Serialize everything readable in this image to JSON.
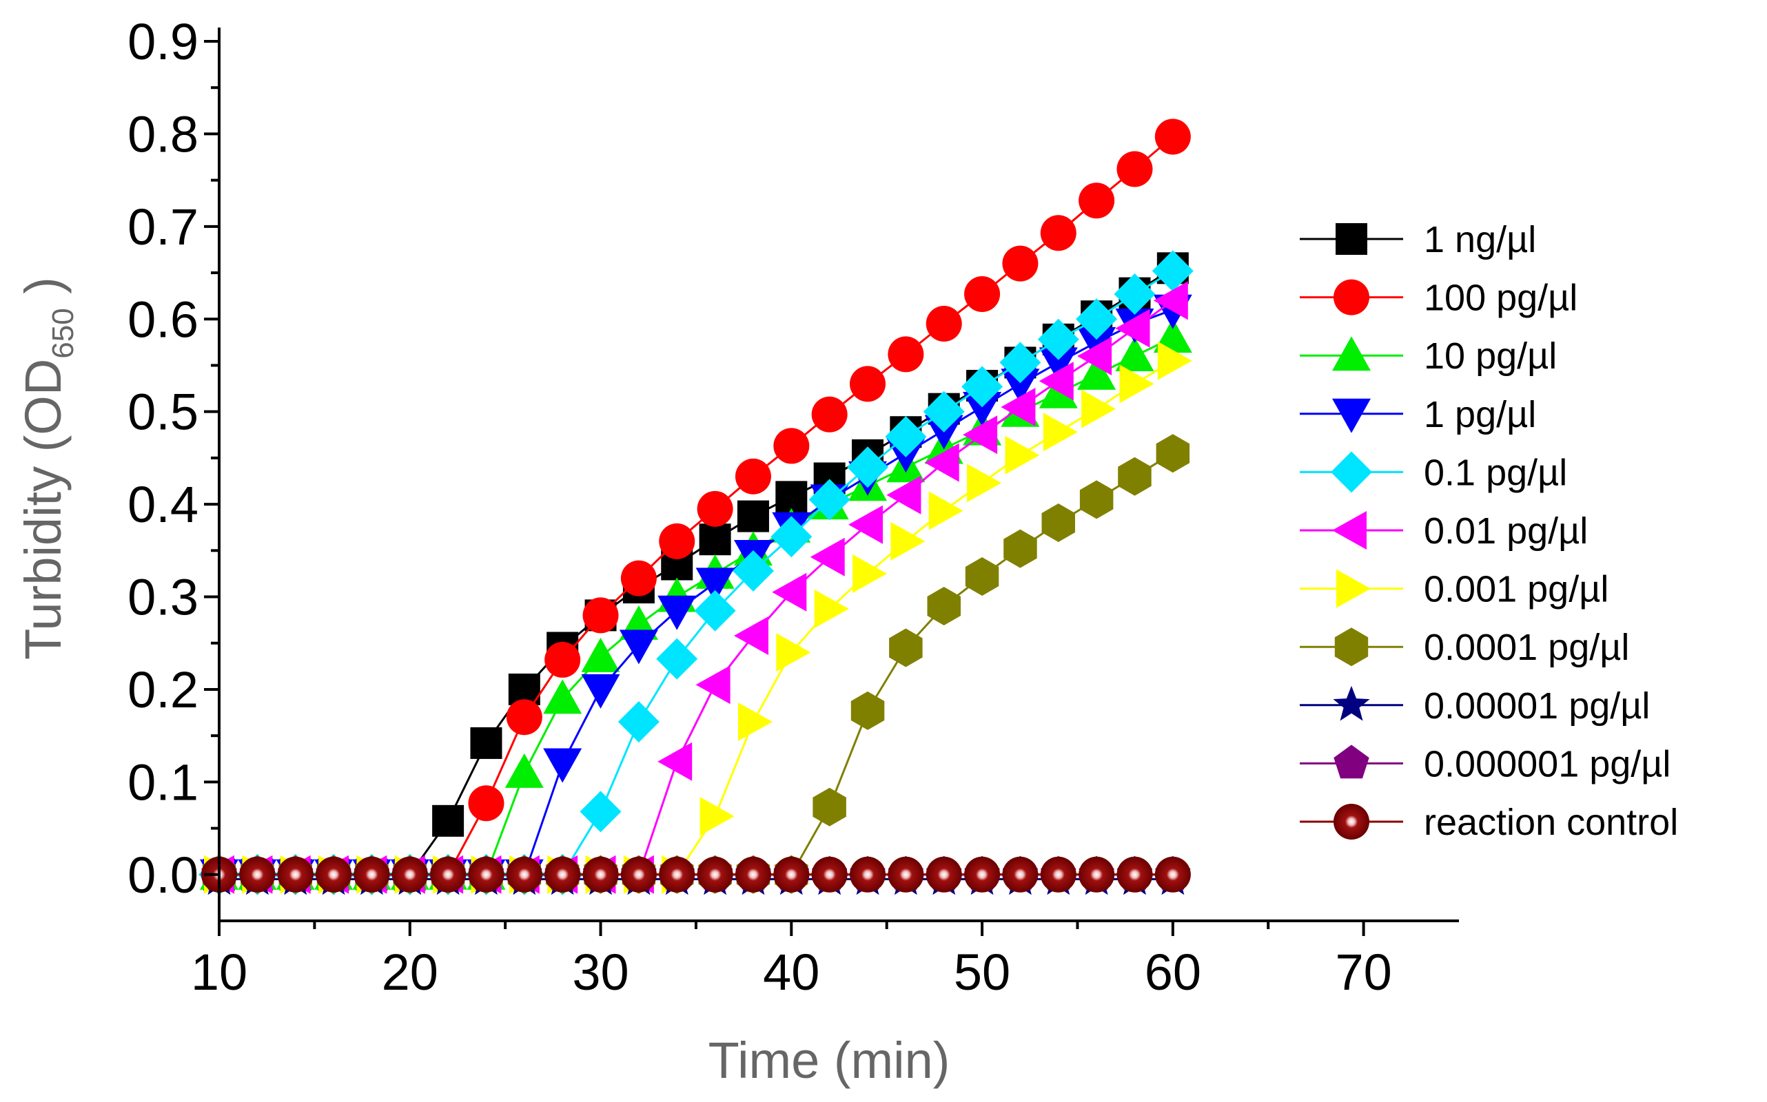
{
  "chart_data": {
    "type": "scatter",
    "title": "",
    "xlabel": "Time (min)",
    "ylabel_main": "Turbidity (OD",
    "ylabel_sub": "650",
    "ylabel_close": " )",
    "xlim": [
      10,
      75
    ],
    "ylim": [
      -0.05,
      0.9
    ],
    "xticks": [
      10,
      20,
      30,
      40,
      50,
      60,
      70
    ],
    "xtick_labels": [
      "10",
      "20",
      "30",
      "40",
      "50",
      "60",
      "70"
    ],
    "yticks": [
      0.0,
      0.1,
      0.2,
      0.3,
      0.4,
      0.5,
      0.6,
      0.7,
      0.8,
      0.9
    ],
    "ytick_labels": [
      "0.0",
      "0.1",
      "0.2",
      "0.3",
      "0.4",
      "0.5",
      "0.6",
      "0.7",
      "0.8",
      "0.9"
    ],
    "legend_position": "right",
    "x": [
      10,
      12,
      14,
      16,
      18,
      20,
      22,
      24,
      26,
      28,
      30,
      32,
      34,
      36,
      38,
      40,
      42,
      44,
      46,
      48,
      50,
      52,
      54,
      56,
      58,
      60
    ],
    "series": [
      {
        "name": "1 ng/µl",
        "color": "#000000",
        "marker": "square",
        "values": [
          0,
          0,
          0,
          0,
          0,
          0,
          0.058,
          0.142,
          0.2,
          0.245,
          0.28,
          0.31,
          0.335,
          0.362,
          0.387,
          0.408,
          0.428,
          0.453,
          0.478,
          0.503,
          0.528,
          0.553,
          0.578,
          0.603,
          0.628,
          0.655
        ]
      },
      {
        "name": "100 pg/µl",
        "color": "#ff0000",
        "marker": "circle",
        "values": [
          0,
          0,
          0,
          0,
          0,
          0,
          0,
          0.077,
          0.17,
          0.232,
          0.28,
          0.32,
          0.36,
          0.395,
          0.43,
          0.463,
          0.497,
          0.53,
          0.562,
          0.595,
          0.627,
          0.66,
          0.693,
          0.728,
          0.762,
          0.797
        ]
      },
      {
        "name": "10 pg/µl",
        "color": "#00ee00",
        "marker": "triangle-up",
        "values": [
          0,
          0,
          0,
          0,
          0,
          0,
          0,
          0,
          0.11,
          0.19,
          0.235,
          0.27,
          0.3,
          0.325,
          0.35,
          0.375,
          0.4,
          0.42,
          0.44,
          0.46,
          0.48,
          0.5,
          0.52,
          0.54,
          0.56,
          0.58
        ]
      },
      {
        "name": "1 pg/µl",
        "color": "#0000ff",
        "marker": "triangle-down",
        "values": [
          0,
          0,
          0,
          0,
          0,
          0,
          0,
          0,
          0,
          0.12,
          0.2,
          0.248,
          0.285,
          0.315,
          0.345,
          0.375,
          0.405,
          0.43,
          0.455,
          0.48,
          0.505,
          0.53,
          0.553,
          0.575,
          0.595,
          0.61
        ]
      },
      {
        "name": "0.1 pg/µl",
        "color": "#00e5ff",
        "marker": "diamond",
        "values": [
          0,
          0,
          0,
          0,
          0,
          0,
          0,
          0,
          0,
          0,
          0.068,
          0.165,
          0.233,
          0.285,
          0.328,
          0.365,
          0.405,
          0.44,
          0.473,
          0.5,
          0.527,
          0.553,
          0.578,
          0.6,
          0.627,
          0.652
        ]
      },
      {
        "name": "0.01 pg/µl",
        "color": "#ff00ff",
        "marker": "triangle-left",
        "values": [
          0,
          0,
          0,
          0,
          0,
          0,
          0,
          0,
          0,
          0,
          0,
          0,
          0.122,
          0.205,
          0.258,
          0.305,
          0.343,
          0.378,
          0.41,
          0.445,
          0.475,
          0.505,
          0.533,
          0.56,
          0.59,
          0.62
        ]
      },
      {
        "name": "0.001 pg/µl",
        "color": "#ffff00",
        "marker": "triangle-right",
        "values": [
          0,
          0,
          0,
          0,
          0,
          0,
          0,
          0,
          0,
          0,
          0,
          0,
          0,
          0.063,
          0.165,
          0.24,
          0.287,
          0.325,
          0.36,
          0.393,
          0.423,
          0.453,
          0.478,
          0.503,
          0.53,
          0.555
        ]
      },
      {
        "name": "0.0001 pg/µl",
        "color": "#808000",
        "marker": "hexagon",
        "values": [
          0,
          0,
          0,
          0,
          0,
          0,
          0,
          0,
          0,
          0,
          0,
          0,
          0,
          0,
          0,
          0,
          0.073,
          0.177,
          0.245,
          0.29,
          0.322,
          0.352,
          0.38,
          0.405,
          0.43,
          0.455
        ]
      },
      {
        "name": "0.00001 pg/µl",
        "color": "#000080",
        "marker": "star",
        "values": [
          -0.005,
          -0.005,
          -0.005,
          -0.005,
          -0.005,
          -0.005,
          -0.005,
          -0.005,
          -0.005,
          -0.005,
          -0.005,
          -0.005,
          -0.005,
          -0.005,
          -0.005,
          -0.005,
          -0.005,
          -0.005,
          -0.005,
          -0.005,
          -0.005,
          -0.005,
          -0.005,
          -0.005,
          -0.005,
          -0.005
        ]
      },
      {
        "name": "0.000001 pg/µl",
        "color": "#800080",
        "marker": "pentagon",
        "values": [
          0,
          0,
          0,
          0,
          0,
          0,
          0,
          0,
          0,
          0,
          0,
          0,
          0,
          0,
          0,
          0,
          0,
          0,
          0,
          0,
          0,
          0,
          0,
          0,
          0,
          0
        ]
      },
      {
        "name": "reaction control",
        "color": "#8b0000",
        "marker": "sphere",
        "values": [
          0,
          0,
          0,
          0,
          0,
          0,
          0,
          0,
          0,
          0,
          0,
          0,
          0,
          0,
          0,
          0,
          0,
          0,
          0,
          0,
          0,
          0,
          0,
          0,
          0,
          0
        ]
      }
    ]
  }
}
